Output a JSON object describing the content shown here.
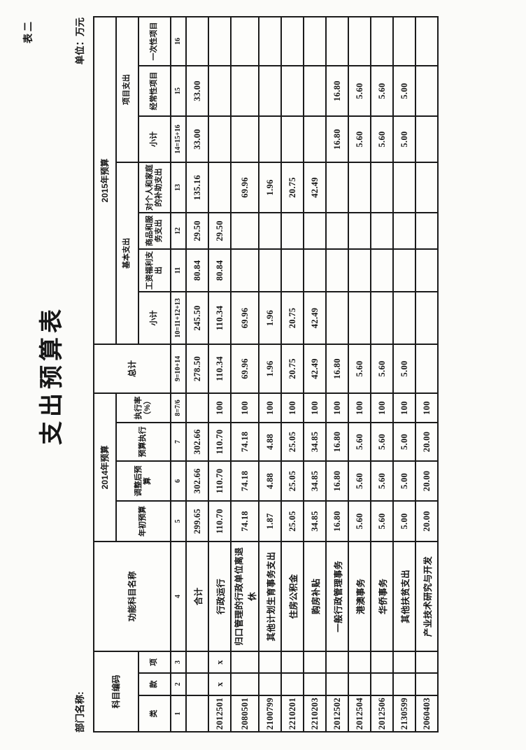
{
  "doc": {
    "sheet_tag": "表二",
    "title": "支出预算表",
    "department_label": "部门名称:",
    "unit_label": "单位：万元"
  },
  "table": {
    "header": {
      "subject_code": "科目编码",
      "code_class": "类",
      "code_section": "款",
      "code_item": "项",
      "function_name": "功能科目名称",
      "y2014": "2014年预算",
      "initial_budget": "年初预算",
      "adjusted_budget": "调整后预算",
      "budget_execution": "预算执行",
      "execution_rate": "执行率（%）",
      "grand_total": "总计",
      "y2015": "2015年预算",
      "basic_expenditure": "基本支出",
      "basic_subtotal": "小计",
      "wages_benefits": "工资福利支出",
      "goods_services": "商品和服务支出",
      "individual_family_subsidies": "对个人和家庭的补助支出",
      "project_expenditure": "项目支出",
      "project_subtotal": "小计",
      "recurring_projects": "经常性项目",
      "onetime_projects": "一次性项目",
      "col_numbers": [
        "1",
        "2",
        "3",
        "4",
        "5",
        "6",
        "7",
        "8=7/6",
        "9=10+14",
        "10=11+12+13",
        "11",
        "12",
        "13",
        "14=15+16",
        "15",
        "16"
      ]
    },
    "rows": [
      [
        "",
        "",
        "",
        "合计",
        "299.65",
        "302.66",
        "302.66",
        "",
        "278.50",
        "245.50",
        "80.84",
        "29.50",
        "135.16",
        "33.00",
        "33.00",
        ""
      ],
      [
        "2012501",
        "x",
        "x",
        "行政运行",
        "110.70",
        "110.70",
        "110.70",
        "100",
        "110.34",
        "110.34",
        "80.84",
        "29.50",
        "",
        "",
        "",
        ""
      ],
      [
        "2080501",
        "",
        "",
        "归口管理的行政单位离退休",
        "74.18",
        "74.18",
        "74.18",
        "100",
        "69.96",
        "69.96",
        "",
        "",
        "69.96",
        "",
        "",
        ""
      ],
      [
        "2100799",
        "",
        "",
        "其他计划生育事务支出",
        "1.87",
        "4.88",
        "4.88",
        "100",
        "1.96",
        "1.96",
        "",
        "",
        "1.96",
        "",
        "",
        ""
      ],
      [
        "2210201",
        "",
        "",
        "住房公积金",
        "25.05",
        "25.05",
        "25.05",
        "100",
        "20.75",
        "20.75",
        "",
        "",
        "20.75",
        "",
        "",
        ""
      ],
      [
        "2210203",
        "",
        "",
        "购房补贴",
        "34.85",
        "34.85",
        "34.85",
        "100",
        "42.49",
        "42.49",
        "",
        "",
        "42.49",
        "",
        "",
        ""
      ],
      [
        "2012502",
        "",
        "",
        "一般行政管理事务",
        "16.80",
        "16.80",
        "16.80",
        "100",
        "16.80",
        "",
        "",
        "",
        "",
        "16.80",
        "16.80",
        ""
      ],
      [
        "2012504",
        "",
        "",
        "港澳事务",
        "5.60",
        "5.60",
        "5.60",
        "100",
        "5.60",
        "",
        "",
        "",
        "",
        "5.60",
        "5.60",
        ""
      ],
      [
        "2012506",
        "",
        "",
        "华侨事务",
        "5.60",
        "5.60",
        "5.60",
        "100",
        "5.60",
        "",
        "",
        "",
        "",
        "5.60",
        "5.60",
        ""
      ],
      [
        "2130599",
        "",
        "",
        "其他扶贫支出",
        "5.00",
        "5.00",
        "5.00",
        "100",
        "5.00",
        "",
        "",
        "",
        "",
        "5.00",
        "5.00",
        ""
      ],
      [
        "2060403",
        "",
        "",
        "产业技术研究与开发",
        "20.00",
        "20.00",
        "20.00",
        "100",
        "",
        "",
        "",
        "",
        "",
        "",
        "",
        ""
      ]
    ]
  }
}
